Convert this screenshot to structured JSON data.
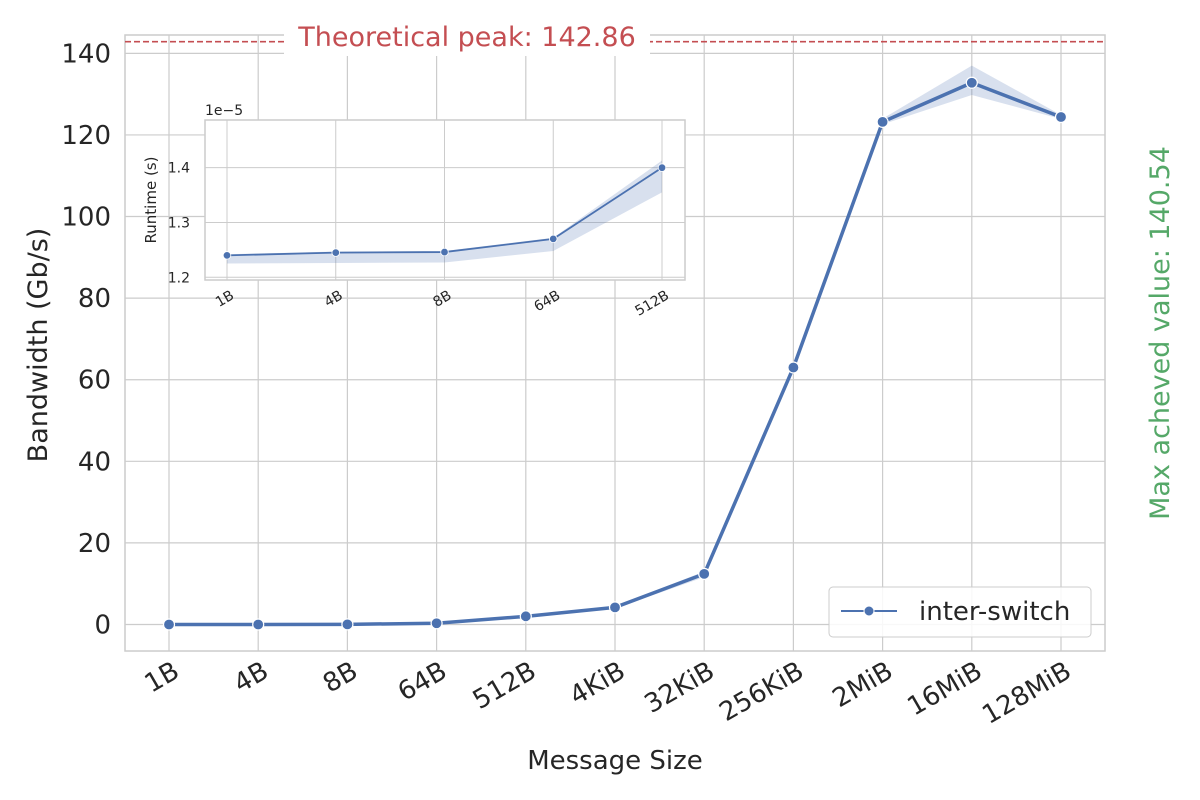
{
  "chart_data": [
    {
      "type": "line",
      "xlabel": "Message Size",
      "ylabel": "Bandwidth (Gb/s)",
      "categories": [
        "1B",
        "4B",
        "8B",
        "64B",
        "512B",
        "4KiB",
        "32KiB",
        "256KiB",
        "2MiB",
        "16MiB",
        "128MiB"
      ],
      "yticks": [
        "0",
        "20",
        "40",
        "60",
        "80",
        "100",
        "120",
        "140"
      ],
      "ylim": [
        -6.5,
        144.5
      ],
      "grid": true,
      "legend_position": "bottom-right",
      "series": [
        {
          "name": "inter-switch",
          "color": "#4c72b0",
          "marker": "circle",
          "values": [
            0.0,
            0.0,
            0.03,
            0.3,
            2.0,
            4.2,
            12.4,
            63.0,
            123.2,
            132.8,
            124.4
          ],
          "ci_lower": [
            0.0,
            0.0,
            0.0,
            0.2,
            1.8,
            3.9,
            11.6,
            62.4,
            122.6,
            129.8,
            123.9
          ],
          "ci_upper": [
            0.0,
            0.0,
            0.06,
            0.4,
            2.2,
            4.5,
            13.0,
            63.6,
            124.0,
            137.0,
            124.9
          ]
        }
      ],
      "reference_line": {
        "value": 142.86,
        "label": "Theoretical peak: 142.86",
        "color": "#c44e52"
      },
      "side_annotation": {
        "label": "Max acheved value: 140.54",
        "color": "#55a868"
      }
    },
    {
      "type": "line",
      "ylabel": "Runtime (s)",
      "categories": [
        "1B",
        "4B",
        "8B",
        "64B",
        "512B"
      ],
      "yticks": [
        "1.2",
        "1.3",
        "1.4"
      ],
      "scale_label": "1e−5",
      "ylim": [
        1.195,
        1.487
      ],
      "grid": true,
      "series": [
        {
          "color": "#4c72b0",
          "marker": "circle",
          "values": [
            1.24,
            1.245,
            1.246,
            1.27,
            1.4
          ],
          "ci_lower": [
            1.225,
            1.226,
            1.227,
            1.248,
            1.355
          ],
          "ci_upper": [
            1.242,
            1.247,
            1.248,
            1.272,
            1.413
          ]
        }
      ]
    }
  ]
}
